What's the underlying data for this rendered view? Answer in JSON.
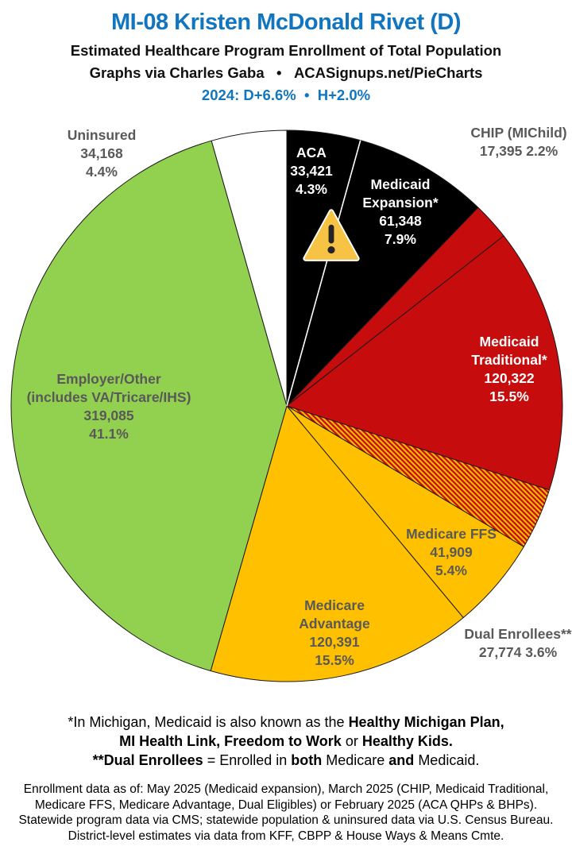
{
  "header": {
    "title": "MI-08 Kristen McDonald Rivet (D)",
    "subtitle": "Estimated Healthcare Program Enrollment of Total Population",
    "credit": "Graphs via Charles Gaba   •   ACASignups.net/PieCharts",
    "partisan": "2024: D+6.6%  •  H+2.0%",
    "title_color": "#1176BF",
    "partisan_color": "#1176BF"
  },
  "chart_data": {
    "type": "pie",
    "title": "MI-08 Kristen McDonald Rivet (D) — Estimated Healthcare Program Enrollment of Total Population",
    "start_angle_deg": 0,
    "direction": "clockwise",
    "legend_position": "labels-on-slices",
    "outline_color": "#1a1a1a",
    "hatch_colors": {
      "background": "#FFC000",
      "stripe": "#C60C0C"
    },
    "label_gray": "#595959",
    "slices": [
      {
        "id": "aca",
        "label": "ACA",
        "value": 33421,
        "pct": 4.3,
        "color": "#000000",
        "lines": [
          "ACA",
          "33,421",
          "4.3%"
        ]
      },
      {
        "id": "medicaid-expansion",
        "label": "Medicaid Expansion*",
        "value": 61348,
        "pct": 7.9,
        "color": "#000000",
        "lines": [
          "Medicaid",
          "Expansion*",
          "61,348",
          "7.9%"
        ]
      },
      {
        "id": "chip",
        "label": "CHIP (MIChild)",
        "value": 17395,
        "pct": 2.2,
        "color": "#C60C0C",
        "lines": [
          "CHIP (MIChild)",
          "17,395 2.2%"
        ]
      },
      {
        "id": "medicaid-traditional",
        "label": "Medicaid Traditional*",
        "value": 120322,
        "pct": 15.5,
        "color": "#C60C0C",
        "lines": [
          "Medicaid",
          "Traditional*",
          "120,322",
          "15.5%"
        ]
      },
      {
        "id": "dual-enrollees",
        "label": "Dual Enrollees**",
        "value": 27774,
        "pct": 3.6,
        "color": "hatch",
        "lines": [
          "Dual Enrollees**",
          "27,774 3.6%"
        ]
      },
      {
        "id": "medicare-ffs",
        "label": "Medicare FFS",
        "value": 41909,
        "pct": 5.4,
        "color": "#FFC000",
        "lines": [
          "Medicare FFS",
          "41,909",
          "5.4%"
        ]
      },
      {
        "id": "medicare-advantage",
        "label": "Medicare Advantage",
        "value": 120391,
        "pct": 15.5,
        "color": "#FFC000",
        "lines": [
          "Medicare",
          "Advantage",
          "120,391",
          "15.5%"
        ]
      },
      {
        "id": "employer-other",
        "label": "Employer/Other (includes VA/Tricare/IHS)",
        "value": 319085,
        "pct": 41.1,
        "color": "#92D050",
        "lines": [
          "Employer/Other",
          "(includes VA/Tricare/IHS)",
          "319,085",
          "41.1%"
        ]
      },
      {
        "id": "uninsured",
        "label": "Uninsured",
        "value": 34168,
        "pct": 4.4,
        "color": "#FFFFFF",
        "lines": [
          "Uninsured",
          "34,168",
          "4.4%"
        ]
      }
    ]
  },
  "footnote": {
    "line1": [
      {
        "t": "*In Michigan, Medicaid is also known as the ",
        "b": false
      },
      {
        "t": "Healthy Michigan Plan,",
        "b": true
      }
    ],
    "line2": [
      {
        "t": "MI Health Link, Freedom to Work",
        "b": true
      },
      {
        "t": " or ",
        "b": false
      },
      {
        "t": "Healthy Kids.",
        "b": true
      }
    ],
    "line3": [
      {
        "t": "**Dual Enrollees",
        "b": true
      },
      {
        "t": " = Enrolled in ",
        "b": false
      },
      {
        "t": "both",
        "b": true
      },
      {
        "t": " Medicare ",
        "b": false
      },
      {
        "t": "and",
        "b": true
      },
      {
        "t": " Medicaid.",
        "b": false
      }
    ]
  },
  "sources": [
    "Enrollment data as of: May 2025 (Medicaid expansion), March 2025 (CHIP, Medicaid Traditional,",
    "Medicare FFS, Medicare Advantage, Dual Eligibles) or February 2025 (ACA QHPs & BHPs).",
    "Statewide program data via CMS; statewide population & uninsured data via U.S. Census Bureau.",
    "District-level estimates via data from KFF, CBPP & House Ways & Means Cmte."
  ]
}
